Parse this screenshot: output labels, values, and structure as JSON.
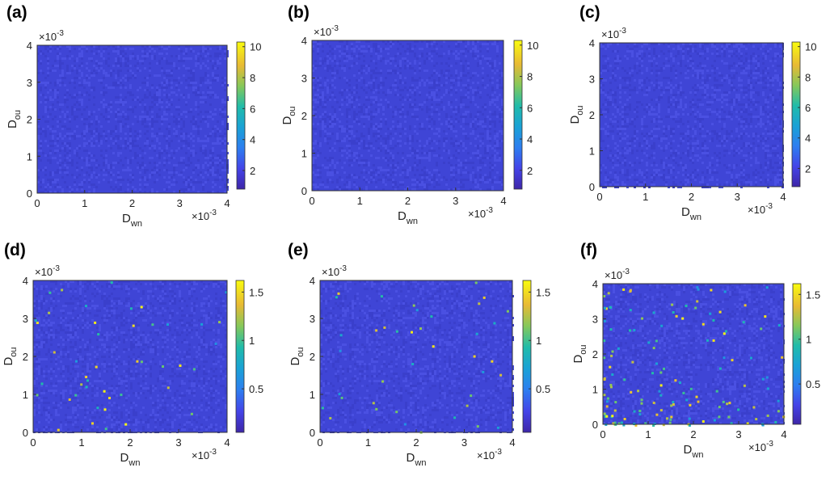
{
  "chart_data": [
    {
      "id": "a",
      "type": "heatmap",
      "panel_label": "(a)",
      "xlabel_main": "D",
      "xlabel_sub": "wn",
      "ylabel_main": "D",
      "ylabel_sub": "ou",
      "xlim": [
        0,
        4
      ],
      "ylim": [
        0,
        4
      ],
      "xticks": [
        "0",
        "1",
        "2",
        "3",
        "4"
      ],
      "yticks": [
        "0",
        "1",
        "2",
        "3",
        "4"
      ],
      "x_exponent_base": "×10",
      "x_exponent_power": "-3",
      "y_exponent_base": "×10",
      "y_exponent_power": "-3",
      "colorbar_range": [
        0.8,
        10.3
      ],
      "colorbar_ticks": [
        "2",
        "4",
        "6",
        "8",
        "10"
      ],
      "colorbar_tick_values": [
        2,
        4,
        6,
        8,
        10
      ],
      "background_level": 1.2,
      "hot_spot_count": 0
    },
    {
      "id": "b",
      "type": "heatmap",
      "panel_label": "(b)",
      "xlabel_main": "D",
      "xlabel_sub": "wn",
      "ylabel_main": "D",
      "ylabel_sub": "ou",
      "xlim": [
        0,
        4
      ],
      "ylim": [
        0,
        4
      ],
      "xticks": [
        "0",
        "1",
        "2",
        "3",
        "4"
      ],
      "yticks": [
        "0",
        "1",
        "2",
        "3",
        "4"
      ],
      "x_exponent_base": "×10",
      "x_exponent_power": "-3",
      "y_exponent_base": "×10",
      "y_exponent_power": "-3",
      "colorbar_range": [
        0.8,
        10.3
      ],
      "colorbar_ticks": [
        "2",
        "4",
        "6",
        "8",
        "10"
      ],
      "colorbar_tick_values": [
        2,
        4,
        6,
        8,
        10
      ],
      "background_level": 1.2,
      "hot_spot_count": 0
    },
    {
      "id": "c",
      "type": "heatmap",
      "panel_label": "(c)",
      "xlabel_main": "D",
      "xlabel_sub": "wn",
      "ylabel_main": "D",
      "ylabel_sub": "ou",
      "xlim": [
        0,
        4
      ],
      "ylim": [
        0,
        4
      ],
      "xticks": [
        "0",
        "1",
        "2",
        "3",
        "4"
      ],
      "yticks": [
        "0",
        "1",
        "2",
        "3",
        "4"
      ],
      "x_exponent_base": "×10",
      "x_exponent_power": "-3",
      "y_exponent_base": "×10",
      "y_exponent_power": "-3",
      "colorbar_range": [
        0.8,
        10.3
      ],
      "colorbar_ticks": [
        "2",
        "4",
        "6",
        "8",
        "10"
      ],
      "colorbar_tick_values": [
        2,
        4,
        6,
        8,
        10
      ],
      "background_level": 1.2,
      "hot_spot_count": 0
    },
    {
      "id": "d",
      "type": "heatmap",
      "panel_label": "(d)",
      "xlabel_main": "D",
      "xlabel_sub": "wn",
      "ylabel_main": "D",
      "ylabel_sub": "ou",
      "xlim": [
        0,
        4
      ],
      "ylim": [
        0,
        4
      ],
      "xticks": [
        "0",
        "1",
        "2",
        "3",
        "4"
      ],
      "yticks": [
        "0",
        "1",
        "2",
        "3",
        "4"
      ],
      "x_exponent_base": "×10",
      "x_exponent_power": "-3",
      "y_exponent_base": "×10",
      "y_exponent_power": "-3",
      "colorbar_range": [
        0.05,
        1.62
      ],
      "colorbar_ticks": [
        "0.5",
        "1",
        "1.5"
      ],
      "colorbar_tick_values": [
        0.5,
        1,
        1.5
      ],
      "background_level": 0.2,
      "hot_spot_count": 45
    },
    {
      "id": "e",
      "type": "heatmap",
      "panel_label": "(e)",
      "xlabel_main": "D",
      "xlabel_sub": "wn",
      "ylabel_main": "D",
      "ylabel_sub": "ou",
      "xlim": [
        0,
        4
      ],
      "ylim": [
        0,
        4
      ],
      "xticks": [
        "0",
        "1",
        "2",
        "3",
        "4"
      ],
      "yticks": [
        "0",
        "1",
        "2",
        "3",
        "4"
      ],
      "x_exponent_base": "×10",
      "x_exponent_power": "-3",
      "y_exponent_base": "×10",
      "y_exponent_power": "-3",
      "colorbar_range": [
        0.05,
        1.62
      ],
      "colorbar_ticks": [
        "0.5",
        "1",
        "1.5"
      ],
      "colorbar_tick_values": [
        0.5,
        1,
        1.5
      ],
      "background_level": 0.2,
      "hot_spot_count": 40
    },
    {
      "id": "f",
      "type": "heatmap",
      "panel_label": "(f)",
      "xlabel_main": "D",
      "xlabel_sub": "wn",
      "ylabel_main": "D",
      "ylabel_sub": "ou",
      "xlim": [
        0,
        4
      ],
      "ylim": [
        0,
        4
      ],
      "xticks": [
        "0",
        "1",
        "2",
        "3",
        "4"
      ],
      "yticks": [
        "0",
        "1",
        "2",
        "3",
        "4"
      ],
      "x_exponent_base": "×10",
      "x_exponent_power": "-3",
      "y_exponent_base": "×10",
      "y_exponent_power": "-3",
      "colorbar_range": [
        0.05,
        1.62
      ],
      "colorbar_ticks": [
        "0.5",
        "1",
        "1.5"
      ],
      "colorbar_tick_values": [
        0.5,
        1,
        1.5
      ],
      "background_level": 0.2,
      "hot_spot_count": 150
    }
  ]
}
